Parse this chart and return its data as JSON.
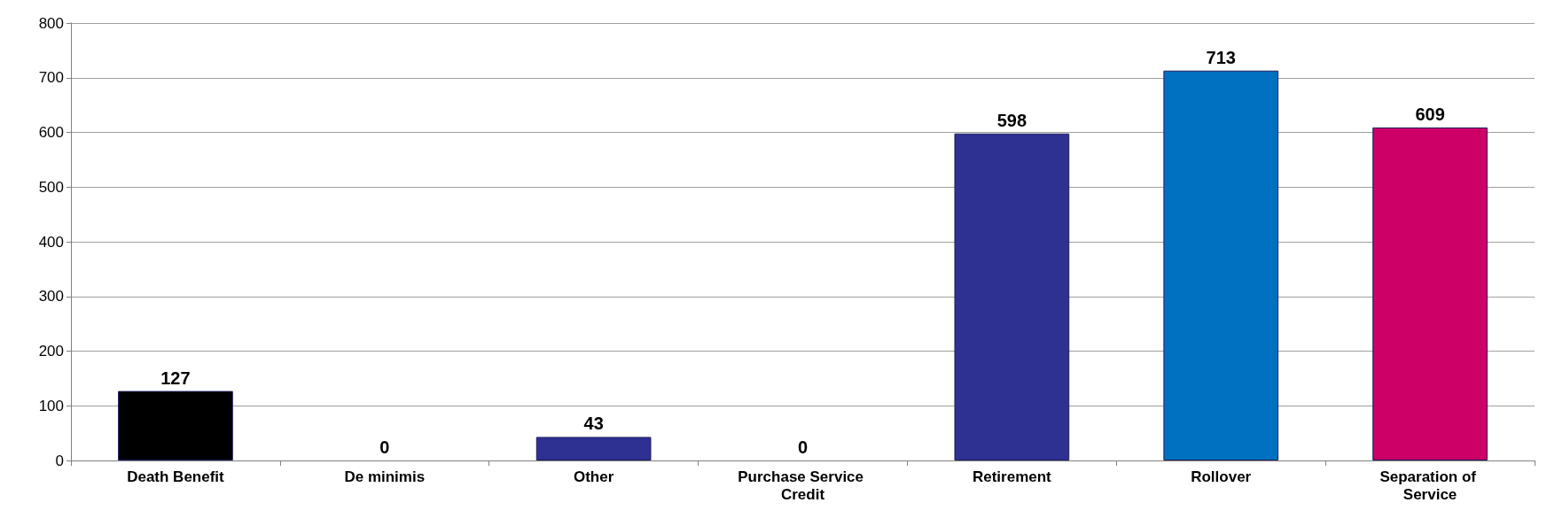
{
  "chart_data": {
    "type": "bar",
    "categories": [
      "Death Benefit",
      "De minimis",
      "Other",
      "Purchase Service Credit",
      "Retirement",
      "Rollover",
      "Separation of Service"
    ],
    "values": [
      127,
      0,
      43,
      0,
      598,
      713,
      609
    ],
    "colors": [
      "#000000",
      "#2e3192",
      "#2e3192",
      "#2e3192",
      "#2e3192",
      "#0070c0",
      "#cc0066"
    ],
    "ylim": [
      0,
      800
    ],
    "yticks": [
      0,
      100,
      200,
      300,
      400,
      500,
      600,
      700,
      800
    ],
    "grid": "y",
    "data_labels": true
  }
}
